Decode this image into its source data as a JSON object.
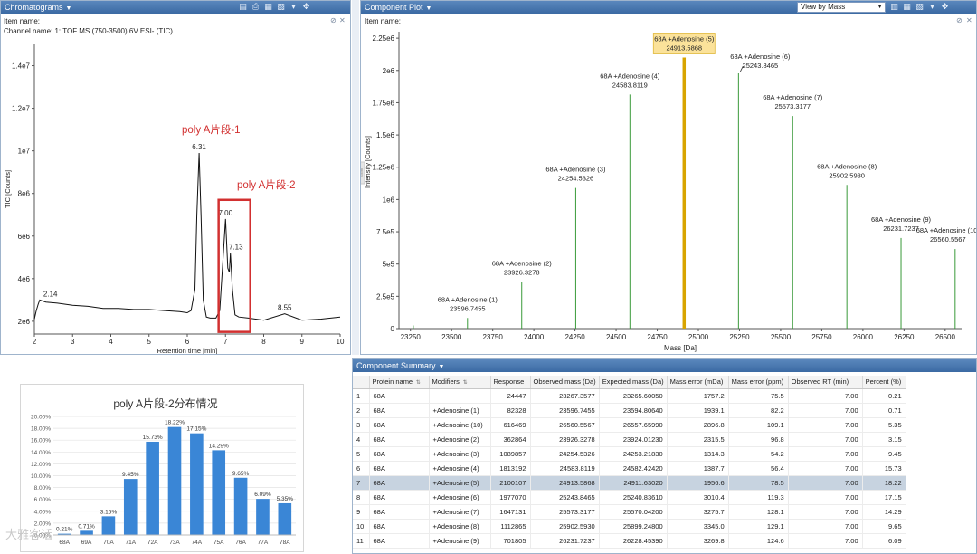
{
  "chromatograms": {
    "title": "Chromatograms",
    "item_name": "Item name:",
    "channel_name": "Channel name: 1: TOF MS (750-3500) 6V ESI- (TIC)",
    "chart_data": {
      "type": "line",
      "xlabel": "Retention time [min]",
      "ylabel": "TIC [Counts]",
      "xlim": [
        2,
        10
      ],
      "ylim": [
        1400000,
        15000000
      ],
      "x_ticks": [
        2,
        3,
        4,
        5,
        6,
        7,
        8,
        9,
        10
      ],
      "y_ticks": [
        {
          "v": 2000000,
          "label": "2e6"
        },
        {
          "v": 4000000,
          "label": "4e6"
        },
        {
          "v": 6000000,
          "label": "6e6"
        },
        {
          "v": 8000000,
          "label": "8e6"
        },
        {
          "v": 10000000,
          "label": "1e7"
        },
        {
          "v": 12000000,
          "label": "1.2e7"
        },
        {
          "v": 14000000,
          "label": "1.4e7"
        }
      ],
      "x": [
        2.0,
        2.05,
        2.1,
        2.14,
        2.3,
        2.6,
        3.0,
        3.4,
        3.8,
        4.2,
        4.6,
        5.0,
        5.4,
        5.8,
        6.0,
        6.1,
        6.2,
        6.25,
        6.31,
        6.36,
        6.42,
        6.5,
        6.6,
        6.75,
        6.85,
        6.92,
        7.0,
        7.06,
        7.1,
        7.13,
        7.18,
        7.25,
        7.35,
        7.6,
        8.0,
        8.55,
        9.0,
        9.5,
        10.0
      ],
      "y": [
        2100000,
        2500000,
        2800000,
        3000000,
        2900000,
        2850000,
        2750000,
        2700000,
        2600000,
        2600000,
        2550000,
        2550000,
        2500000,
        2450000,
        2400000,
        2500000,
        3500000,
        7000000,
        9900000,
        7000000,
        3000000,
        2200000,
        2150000,
        2150000,
        2500000,
        4500000,
        6800000,
        4500000,
        4300000,
        5200000,
        3500000,
        2300000,
        2200000,
        2150000,
        2050000,
        2350000,
        2050000,
        2100000,
        2200000
      ],
      "peak_labels": [
        {
          "x": 2.14,
          "y": 3000000,
          "label": "2.14"
        },
        {
          "x": 6.31,
          "y": 9900000,
          "label": "6.31"
        },
        {
          "x": 7.0,
          "y": 6800000,
          "label": "7.00"
        },
        {
          "x": 7.13,
          "y": 5200000,
          "label": "7.13"
        },
        {
          "x": 8.55,
          "y": 2350000,
          "label": "8.55"
        }
      ],
      "annotations": [
        "poly A片段-1",
        "poly A片段-2"
      ]
    }
  },
  "component_plot": {
    "title": "Component Plot",
    "view_select": "View by Mass",
    "item_name": "Item name:",
    "side_tab": "Zoom",
    "chart_data": {
      "type": "bar",
      "xlabel": "Mass [Da]",
      "ylabel": "Intensity [Counts]",
      "xlim": [
        23180,
        26600
      ],
      "ylim": [
        0,
        2300000
      ],
      "x_ticks": [
        23250,
        23500,
        23750,
        24000,
        24250,
        24500,
        24750,
        25000,
        25250,
        25500,
        25750,
        26000,
        26250,
        26500
      ],
      "y_ticks": [
        {
          "v": 0,
          "label": "0"
        },
        {
          "v": 250000,
          "label": "2.5e5"
        },
        {
          "v": 500000,
          "label": "5e5"
        },
        {
          "v": 750000,
          "label": "7.5e5"
        },
        {
          "v": 1000000,
          "label": "1e6"
        },
        {
          "v": 1250000,
          "label": "1.25e6"
        },
        {
          "v": 1500000,
          "label": "1.5e6"
        },
        {
          "v": 1750000,
          "label": "1.75e6"
        },
        {
          "v": 2000000,
          "label": "2e6"
        },
        {
          "v": 2250000,
          "label": "2.25e6"
        }
      ],
      "peaks": [
        {
          "mass": 23267.3577,
          "value": 24447,
          "name": "",
          "mass_label": ""
        },
        {
          "mass": 23596.7455,
          "value": 82328,
          "name": "68A +Adenosine (1)",
          "mass_label": "23596.7455"
        },
        {
          "mass": 23926.3278,
          "value": 362864,
          "name": "68A +Adenosine (2)",
          "mass_label": "23926.3278"
        },
        {
          "mass": 24254.5326,
          "value": 1089857,
          "name": "68A +Adenosine (3)",
          "mass_label": "24254.5326"
        },
        {
          "mass": 24583.8119,
          "value": 1813192,
          "name": "68A +Adenosine (4)",
          "mass_label": "24583.8119"
        },
        {
          "mass": 24913.5868,
          "value": 2100107,
          "name": "68A +Adenosine (5)",
          "mass_label": "24913.5868",
          "selected": true
        },
        {
          "mass": 25243.8465,
          "value": 1977070,
          "name": "68A +Adenosine (6)",
          "mass_label": "25243.8465"
        },
        {
          "mass": 25573.3177,
          "value": 1647131,
          "name": "68A +Adenosine (7)",
          "mass_label": "25573.3177"
        },
        {
          "mass": 25902.593,
          "value": 1112865,
          "name": "68A +Adenosine (8)",
          "mass_label": "25902.5930"
        },
        {
          "mass": 26231.7237,
          "value": 701805,
          "name": "68A +Adenosine (9)",
          "mass_label": "26231.7237"
        },
        {
          "mass": 26560.5567,
          "value": 616469,
          "name": "68A +Adenosine (10)",
          "mass_label": "26560.5567"
        }
      ],
      "colors": {
        "peak": "#3a9a3a",
        "selected": "#d8a400",
        "selected_label_bg": "#fbe29a"
      }
    }
  },
  "summary": {
    "title": "Component Summary",
    "columns": [
      "",
      "Protein name",
      "Modifiers",
      "Response",
      "Observed mass (Da)",
      "Expected mass (Da)",
      "Mass error (mDa)",
      "Mass error (ppm)",
      "Observed RT (min)",
      "Percent (%)"
    ],
    "rows": [
      [
        "1",
        "68A",
        "",
        "24447",
        "23267.3577",
        "23265.60050",
        "1757.2",
        "75.5",
        "7.00",
        "0.21"
      ],
      [
        "2",
        "68A",
        "+Adenosine (1)",
        "82328",
        "23596.7455",
        "23594.80640",
        "1939.1",
        "82.2",
        "7.00",
        "0.71"
      ],
      [
        "3",
        "68A",
        "+Adenosine (10)",
        "616469",
        "26560.5567",
        "26557.65990",
        "2896.8",
        "109.1",
        "7.00",
        "5.35"
      ],
      [
        "4",
        "68A",
        "+Adenosine (2)",
        "362864",
        "23926.3278",
        "23924.01230",
        "2315.5",
        "96.8",
        "7.00",
        "3.15"
      ],
      [
        "5",
        "68A",
        "+Adenosine (3)",
        "1089857",
        "24254.5326",
        "24253.21830",
        "1314.3",
        "54.2",
        "7.00",
        "9.45"
      ],
      [
        "6",
        "68A",
        "+Adenosine (4)",
        "1813192",
        "24583.8119",
        "24582.42420",
        "1387.7",
        "56.4",
        "7.00",
        "15.73"
      ],
      [
        "7",
        "68A",
        "+Adenosine (5)",
        "2100107",
        "24913.5868",
        "24911.63020",
        "1956.6",
        "78.5",
        "7.00",
        "18.22"
      ],
      [
        "8",
        "68A",
        "+Adenosine (6)",
        "1977070",
        "25243.8465",
        "25240.83610",
        "3010.4",
        "119.3",
        "7.00",
        "17.15"
      ],
      [
        "9",
        "68A",
        "+Adenosine (7)",
        "1647131",
        "25573.3177",
        "25570.04200",
        "3275.7",
        "128.1",
        "7.00",
        "14.29"
      ],
      [
        "10",
        "68A",
        "+Adenosine (8)",
        "1112865",
        "25902.5930",
        "25899.24800",
        "3345.0",
        "129.1",
        "7.00",
        "9.65"
      ],
      [
        "11",
        "68A",
        "+Adenosine (9)",
        "701805",
        "26231.7237",
        "26228.45390",
        "3269.8",
        "124.6",
        "7.00",
        "6.09"
      ]
    ],
    "selected_row": 6
  },
  "distribution": {
    "chart_data": {
      "type": "bar",
      "title": "poly A片段-2分布情况",
      "categories": [
        "68A",
        "69A",
        "70A",
        "71A",
        "72A",
        "73A",
        "74A",
        "75A",
        "76A",
        "77A",
        "78A"
      ],
      "values": [
        0.21,
        0.71,
        3.15,
        9.45,
        15.73,
        18.22,
        17.15,
        14.29,
        9.65,
        6.09,
        5.35
      ],
      "value_labels": [
        "0.21%",
        "0.71%",
        "3.15%",
        "9.45%",
        "15.73%",
        "18.22%",
        "17.15%",
        "14.29%",
        "9.65%",
        "6.09%",
        "5.35%"
      ],
      "y_ticks": [
        "0.00%",
        "2.00%",
        "4.00%",
        "6.00%",
        "8.00%",
        "10.00%",
        "12.00%",
        "14.00%",
        "16.00%",
        "18.00%",
        "20.00%"
      ],
      "ylim": [
        0,
        20
      ],
      "color": "#3a86d6"
    }
  },
  "watermark": "大雅客话"
}
